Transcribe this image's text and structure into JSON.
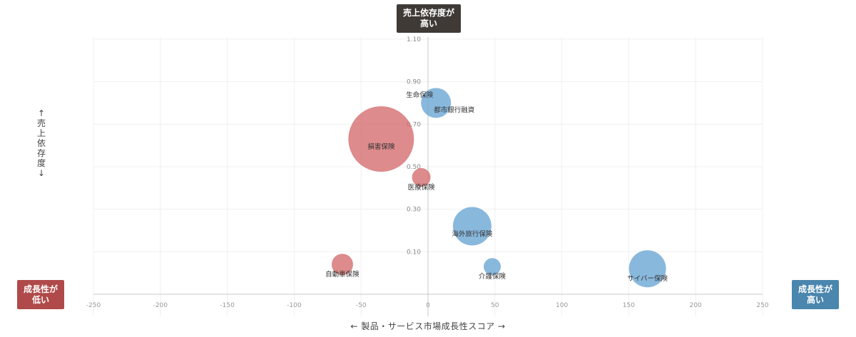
{
  "labels": {
    "top_line1": "売上依存度が",
    "top_line2": "高い",
    "left_line1": "成長性が",
    "left_line2": "低い",
    "right_line1": "成長性が",
    "right_line2": "高い",
    "y_title": "↑\n売\n上\n依\n存\n度\n↓",
    "x_title": "← 製品・サービス市場成長性スコア →"
  },
  "colors": {
    "red": "#d46a6c",
    "blue": "#6fa8d6",
    "top_label_bg": "#3f3a36",
    "left_label_bg": "#b04a4a",
    "right_label_bg": "#4a86ad"
  },
  "chart_data": {
    "type": "scatter",
    "xlim": [
      -250,
      250
    ],
    "ylim": [
      -0.1,
      1.15
    ],
    "x_ticks": [
      -250,
      -200,
      -150,
      -100,
      -50,
      0,
      50,
      100,
      150,
      200,
      250
    ],
    "y_ticks": [
      0.1,
      0.3,
      0.5,
      0.7,
      0.9,
      1.1
    ],
    "y_tick_labels": [
      "0.10",
      "0.30",
      "0.50",
      "0.70",
      "0.90",
      "1.10"
    ],
    "grid": true,
    "points": [
      {
        "label": "生命保険",
        "x": 6,
        "y": 0.8,
        "size": 21,
        "color": "blue",
        "label_pos": "top-left"
      },
      {
        "label": "都市銀行融資",
        "x": 6,
        "y": 0.8,
        "size": 21,
        "color": "blue",
        "label_pos": "bottom-right"
      },
      {
        "label": "損害保険",
        "x": -35,
        "y": 0.63,
        "size": 46,
        "color": "red",
        "label_pos": "center"
      },
      {
        "label": "医療保険",
        "x": -5,
        "y": 0.45,
        "size": 13,
        "color": "red",
        "label_pos": "below"
      },
      {
        "label": "海外旅行保険",
        "x": 33,
        "y": 0.22,
        "size": 27,
        "color": "blue",
        "label_pos": "center"
      },
      {
        "label": "自動車保険",
        "x": -64,
        "y": 0.04,
        "size": 15,
        "color": "red",
        "label_pos": "below"
      },
      {
        "label": "介護保険",
        "x": 48,
        "y": 0.03,
        "size": 12,
        "color": "blue",
        "label_pos": "below"
      },
      {
        "label": "サイバー保険",
        "x": 164,
        "y": 0.02,
        "size": 26,
        "color": "blue",
        "label_pos": "below"
      }
    ]
  }
}
